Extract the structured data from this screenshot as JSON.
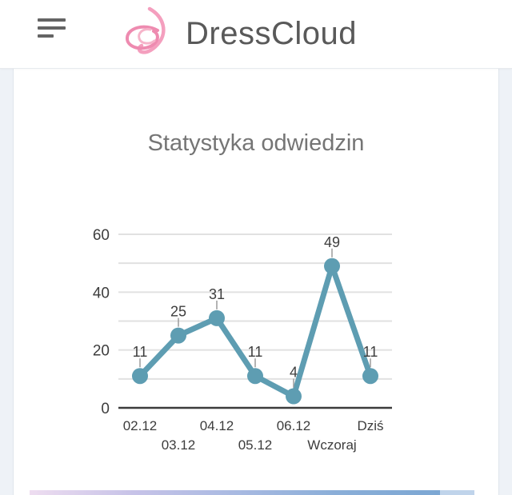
{
  "header": {
    "brand": "DressCloud",
    "brand_color": "#595959",
    "logo_pink": "#ee8bb0",
    "logo_pink_light": "#f6b4ca",
    "menu_icon_color": "#646464"
  },
  "chart_data": {
    "type": "line",
    "title": "Statystyka odwiedzin",
    "categories": [
      "02.12",
      "03.12",
      "04.12",
      "05.12",
      "06.12",
      "Wczoraj",
      "Dziś"
    ],
    "values": [
      11,
      25,
      31,
      11,
      4,
      49,
      11
    ],
    "xlabel": "",
    "ylabel": "",
    "ylim": [
      0,
      60
    ],
    "yticks": [
      0,
      20,
      40,
      60
    ],
    "grid": true,
    "gridline_step": 10,
    "legend": "none",
    "point_labels": true,
    "colors": {
      "series": "#5e9db2",
      "gridline": "#e1e1e1",
      "axis_line": "#3c3c3c",
      "tick_text": "#3d3d3d",
      "label_connector": "#9a9a9a",
      "title": "#757575"
    }
  },
  "bottom_banner": {
    "gradient_colors": [
      "#eeddf0",
      "#c7c3e8",
      "#a9bae2",
      "#8aaed8",
      "#7ca7d3"
    ],
    "tail_color": "#c0d4eb"
  }
}
